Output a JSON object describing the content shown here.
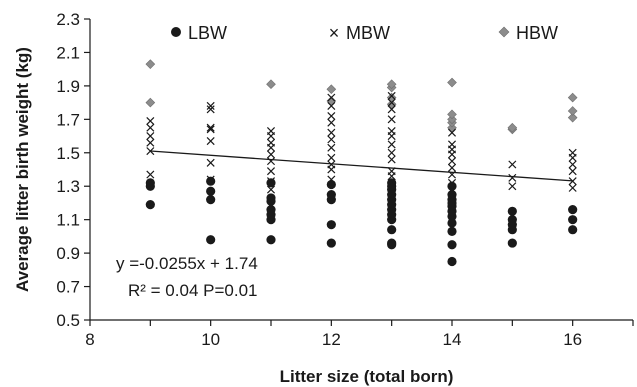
{
  "chart_data": {
    "type": "scatter",
    "title": "",
    "xlabel": "Litter size (total born)",
    "ylabel": "Average litter birth weight (kg)",
    "xlim": [
      8,
      17
    ],
    "ylim": [
      0.5,
      2.3
    ],
    "xticks": [
      "8",
      "10",
      "12",
      "14",
      "16"
    ],
    "xtick_values": [
      8,
      10,
      12,
      14,
      16
    ],
    "yticks": [
      "0.5",
      "0.7",
      "0.9",
      "1.1",
      "1.3",
      "1.5",
      "1.7",
      "1.9",
      "2.1",
      "2.3"
    ],
    "ytick_values": [
      0.5,
      0.7,
      0.9,
      1.1,
      1.3,
      1.5,
      1.7,
      1.9,
      2.1,
      2.3
    ],
    "grid": false,
    "legend_position": "top",
    "series": [
      {
        "name": "LBW",
        "marker": "circle",
        "color": "#1a1a1a",
        "points": [
          [
            9,
            1.19
          ],
          [
            9,
            1.3
          ],
          [
            9,
            1.32
          ],
          [
            10,
            0.98
          ],
          [
            10,
            1.22
          ],
          [
            10,
            1.27
          ],
          [
            10,
            1.33
          ],
          [
            11,
            0.98
          ],
          [
            11,
            1.1
          ],
          [
            11,
            1.13
          ],
          [
            11,
            1.16
          ],
          [
            11,
            1.21
          ],
          [
            11,
            1.23
          ],
          [
            11,
            1.32
          ],
          [
            12,
            0.96
          ],
          [
            12,
            1.07
          ],
          [
            12,
            1.22
          ],
          [
            12,
            1.25
          ],
          [
            12,
            1.31
          ],
          [
            13,
            0.95
          ],
          [
            13,
            0.96
          ],
          [
            13,
            1.04
          ],
          [
            13,
            1.1
          ],
          [
            13,
            1.13
          ],
          [
            13,
            1.16
          ],
          [
            13,
            1.19
          ],
          [
            13,
            1.22
          ],
          [
            13,
            1.25
          ],
          [
            13,
            1.28
          ],
          [
            13,
            1.3
          ],
          [
            13,
            1.32
          ],
          [
            14,
            0.85
          ],
          [
            14,
            0.95
          ],
          [
            14,
            1.03
          ],
          [
            14,
            1.08
          ],
          [
            14,
            1.12
          ],
          [
            14,
            1.15
          ],
          [
            14,
            1.18
          ],
          [
            14,
            1.2
          ],
          [
            14,
            1.22
          ],
          [
            14,
            1.25
          ],
          [
            14,
            1.3
          ],
          [
            15,
            0.96
          ],
          [
            15,
            1.04
          ],
          [
            15,
            1.07
          ],
          [
            15,
            1.1
          ],
          [
            15,
            1.15
          ],
          [
            16,
            1.04
          ],
          [
            16,
            1.1
          ],
          [
            16,
            1.16
          ]
        ]
      },
      {
        "name": "MBW",
        "marker": "x",
        "color": "#1a1a1a",
        "points": [
          [
            9,
            1.37
          ],
          [
            9,
            1.51
          ],
          [
            9,
            1.56
          ],
          [
            9,
            1.6
          ],
          [
            9,
            1.65
          ],
          [
            9,
            1.69
          ],
          [
            10,
            1.34
          ],
          [
            10,
            1.44
          ],
          [
            10,
            1.57
          ],
          [
            10,
            1.64
          ],
          [
            10,
            1.65
          ],
          [
            10,
            1.76
          ],
          [
            10,
            1.78
          ],
          [
            11,
            1.28
          ],
          [
            11,
            1.33
          ],
          [
            11,
            1.39
          ],
          [
            11,
            1.45
          ],
          [
            11,
            1.49
          ],
          [
            11,
            1.53
          ],
          [
            11,
            1.56
          ],
          [
            11,
            1.6
          ],
          [
            11,
            1.63
          ],
          [
            12,
            1.34
          ],
          [
            12,
            1.4
          ],
          [
            12,
            1.43
          ],
          [
            12,
            1.47
          ],
          [
            12,
            1.53
          ],
          [
            12,
            1.58
          ],
          [
            12,
            1.62
          ],
          [
            12,
            1.68
          ],
          [
            12,
            1.72
          ],
          [
            12,
            1.78
          ],
          [
            12,
            1.83
          ],
          [
            13,
            1.32
          ],
          [
            13,
            1.36
          ],
          [
            13,
            1.39
          ],
          [
            13,
            1.46
          ],
          [
            13,
            1.5
          ],
          [
            13,
            1.55
          ],
          [
            13,
            1.6
          ],
          [
            13,
            1.63
          ],
          [
            13,
            1.7
          ],
          [
            13,
            1.76
          ],
          [
            13,
            1.8
          ],
          [
            13,
            1.84
          ],
          [
            14,
            1.24
          ],
          [
            14,
            1.28
          ],
          [
            14,
            1.32
          ],
          [
            14,
            1.37
          ],
          [
            14,
            1.41
          ],
          [
            14,
            1.45
          ],
          [
            14,
            1.49
          ],
          [
            14,
            1.52
          ],
          [
            14,
            1.55
          ],
          [
            14,
            1.62
          ],
          [
            15,
            1.3
          ],
          [
            15,
            1.35
          ],
          [
            15,
            1.43
          ],
          [
            16,
            1.29
          ],
          [
            16,
            1.33
          ],
          [
            16,
            1.39
          ],
          [
            16,
            1.43
          ],
          [
            16,
            1.47
          ],
          [
            16,
            1.5
          ]
        ]
      },
      {
        "name": "HBW",
        "marker": "diamond",
        "color": "#8c8c8c",
        "points": [
          [
            9,
            1.8
          ],
          [
            9,
            2.03
          ],
          [
            11,
            1.91
          ],
          [
            12,
            1.81
          ],
          [
            12,
            1.88
          ],
          [
            13,
            1.79
          ],
          [
            13,
            1.83
          ],
          [
            13,
            1.89
          ],
          [
            13,
            1.91
          ],
          [
            14,
            1.65
          ],
          [
            14,
            1.68
          ],
          [
            14,
            1.7
          ],
          [
            14,
            1.73
          ],
          [
            14,
            1.92
          ],
          [
            15,
            1.64
          ],
          [
            15,
            1.65
          ],
          [
            16,
            1.71
          ],
          [
            16,
            1.75
          ],
          [
            16,
            1.83
          ]
        ]
      }
    ],
    "trendline": {
      "slope": -0.0255,
      "intercept": 1.74,
      "x_range": [
        9,
        16
      ]
    },
    "annotations": [
      "y =-0.0255x + 1.74",
      "R² = 0.04 P=0.01"
    ]
  }
}
